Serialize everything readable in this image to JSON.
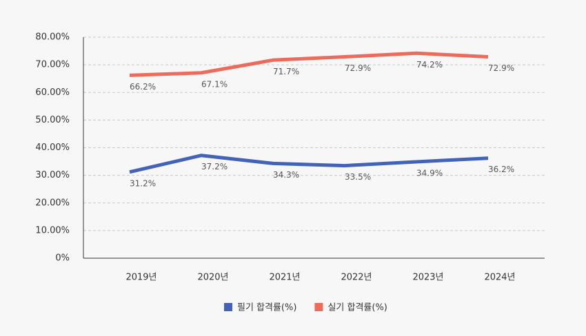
{
  "chart_data": {
    "type": "line",
    "categories": [
      "2019년",
      "2020년",
      "2021년",
      "2022년",
      "2023년",
      "2024년"
    ],
    "series": [
      {
        "name": "필기 합격률(%)",
        "color": "#4263b8",
        "values": [
          31.2,
          37.2,
          34.3,
          33.5,
          34.9,
          36.2
        ],
        "value_labels": [
          "31.2%",
          "37.2%",
          "34.3%",
          "33.5%",
          "34.9%",
          "36.2%"
        ]
      },
      {
        "name": "실기 합격률(%)",
        "color": "#ec6b5b",
        "values": [
          66.2,
          67.1,
          71.7,
          72.9,
          74.2,
          72.9
        ],
        "value_labels": [
          "66.2%",
          "67.1%",
          "71.7%",
          "72.9%",
          "74.2%",
          "72.9%"
        ]
      }
    ],
    "ylim": [
      0,
      80
    ],
    "yticks": [
      {
        "value": 0,
        "label": "0%"
      },
      {
        "value": 10,
        "label": "10.00%"
      },
      {
        "value": 20,
        "label": "20.00%"
      },
      {
        "value": 30,
        "label": "30.00%"
      },
      {
        "value": 40,
        "label": "40.00%"
      },
      {
        "value": 50,
        "label": "50.00%"
      },
      {
        "value": 60,
        "label": "60.00%"
      },
      {
        "value": 70,
        "label": "70.00%"
      },
      {
        "value": 80,
        "label": "80.00%"
      }
    ],
    "grid": true,
    "legend": "bottom"
  }
}
